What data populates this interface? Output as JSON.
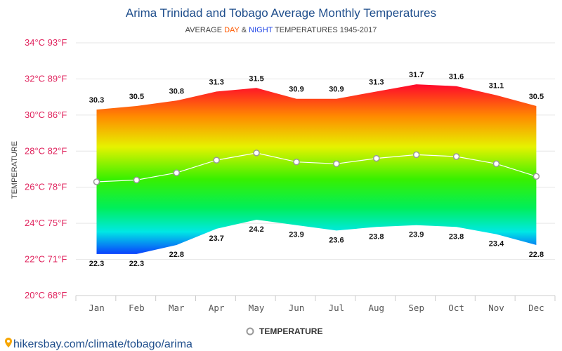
{
  "header": {
    "title": "Arima Trinidad and Tobago Average Monthly Temperatures",
    "subtitle_prefix": "AVERAGE ",
    "subtitle_day": "DAY",
    "subtitle_amp": " & ",
    "subtitle_night": "NIGHT",
    "subtitle_suffix": " TEMPERATURES 1945-2017"
  },
  "colors": {
    "title": "#1f4e8c",
    "day": "#ff5a00",
    "night": "#1d43e6",
    "ytick": "#e0245e",
    "grid": "#e6e6e6",
    "line": "#ffffff",
    "marker_stroke": "#999999"
  },
  "legend": {
    "label": "TEMPERATURE",
    "icon": "circle-marker-icon"
  },
  "source": {
    "icon": "map-pin-icon",
    "text": "hikersbay.com/climate/tobago/arima"
  },
  "chart_data": {
    "type": "area",
    "title": "Arima Trinidad and Tobago Average Monthly Temperatures",
    "subtitle": "AVERAGE DAY & NIGHT TEMPERATURES 1945-2017",
    "ylabel": "TEMPERATURE",
    "xlabel": "",
    "ylim": [
      20,
      34
    ],
    "grid": true,
    "legend_position": "bottom",
    "categories": [
      "Jan",
      "Feb",
      "Mar",
      "Apr",
      "May",
      "Jun",
      "Jul",
      "Aug",
      "Sep",
      "Oct",
      "Nov",
      "Dec"
    ],
    "yticks": [
      {
        "value": 20,
        "label": "20°C 68°F"
      },
      {
        "value": 22,
        "label": "22°C 71°F"
      },
      {
        "value": 24,
        "label": "24°C 75°F"
      },
      {
        "value": 26,
        "label": "26°C 78°F"
      },
      {
        "value": 28,
        "label": "28°C 82°F"
      },
      {
        "value": 30,
        "label": "30°C 86°F"
      },
      {
        "value": 32,
        "label": "32°C 89°F"
      },
      {
        "value": 34,
        "label": "34°C 93°F"
      }
    ],
    "series": [
      {
        "name": "DAY",
        "values": [
          30.3,
          30.5,
          30.8,
          31.3,
          31.5,
          30.9,
          30.9,
          31.3,
          31.7,
          31.6,
          31.1,
          30.5
        ]
      },
      {
        "name": "NIGHT",
        "values": [
          22.3,
          22.3,
          22.8,
          23.7,
          24.2,
          23.9,
          23.6,
          23.8,
          23.9,
          23.8,
          23.4,
          22.8
        ]
      },
      {
        "name": "TEMPERATURE",
        "values": [
          26.3,
          26.4,
          26.8,
          27.5,
          27.9,
          27.4,
          27.3,
          27.6,
          27.8,
          27.7,
          27.3,
          26.6
        ]
      }
    ]
  }
}
